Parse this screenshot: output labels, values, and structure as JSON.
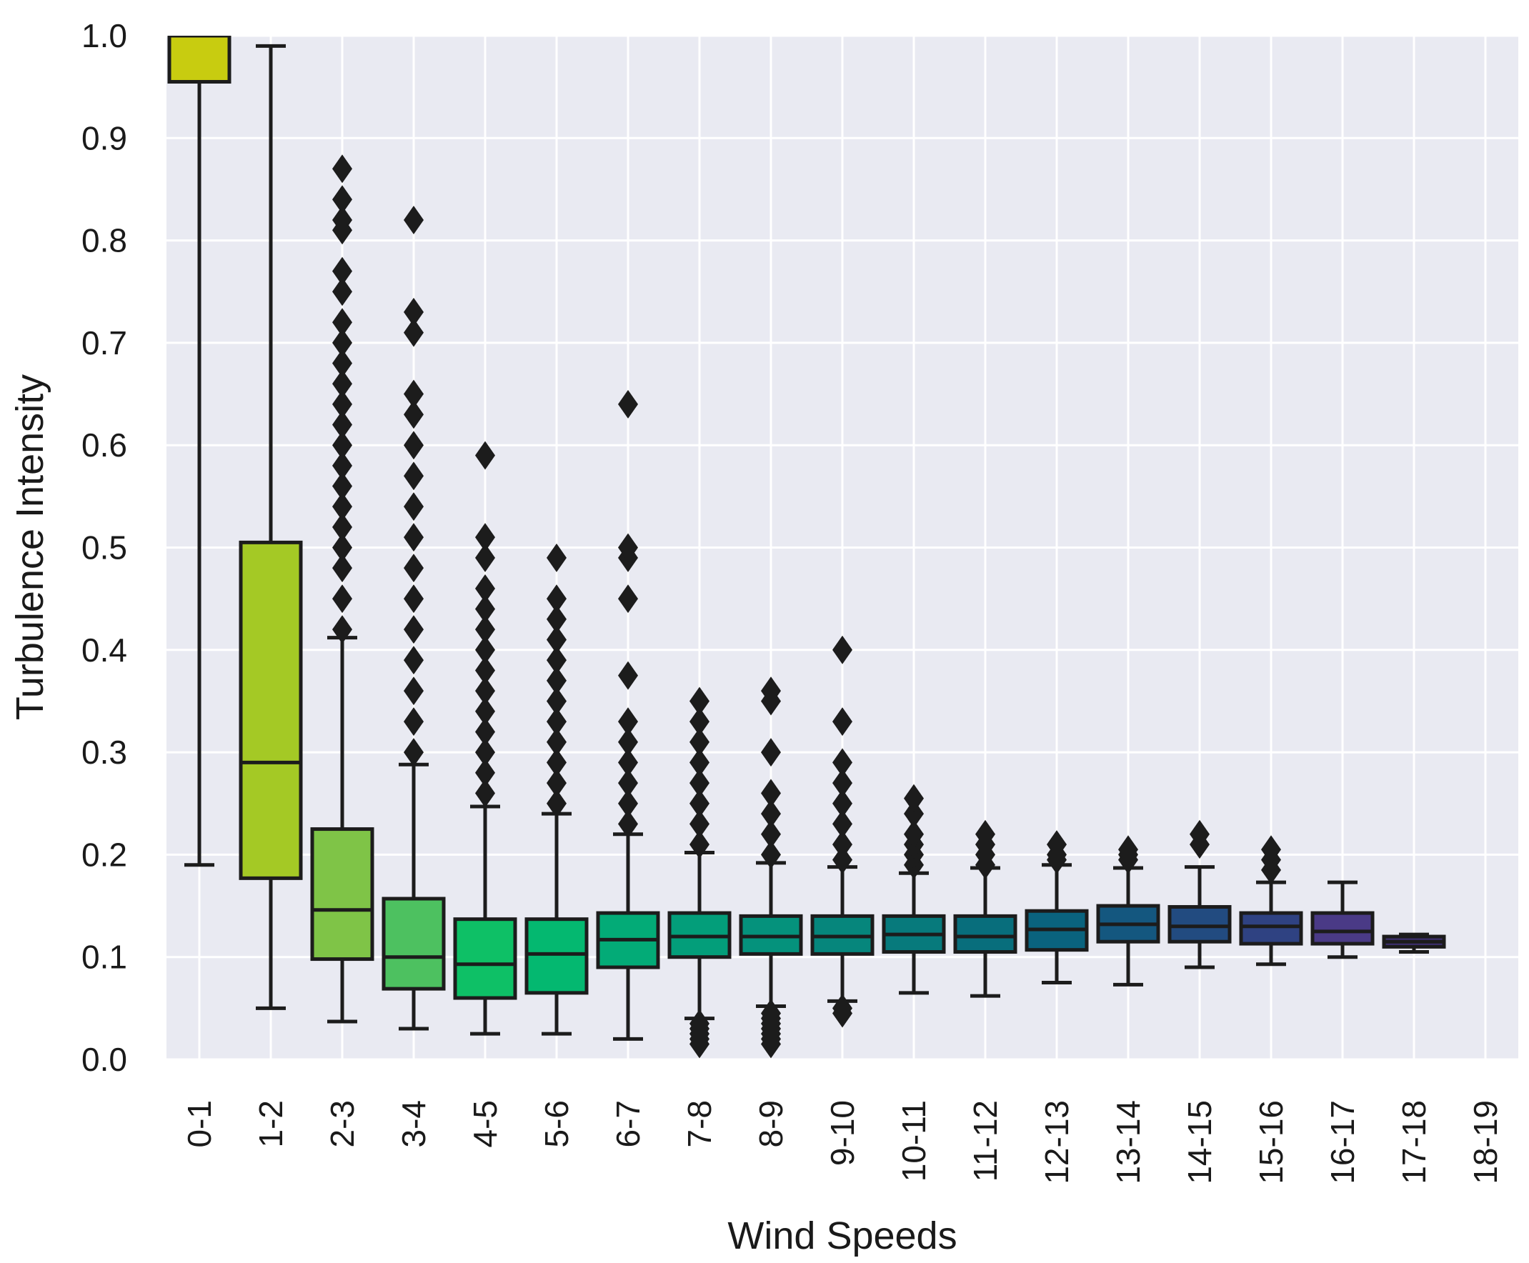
{
  "chart_data": {
    "type": "box",
    "title": "",
    "xlabel": "Wind Speeds",
    "ylabel": "Turbulence Intensity",
    "ylim": [
      0.0,
      1.0
    ],
    "yticks": [
      "0.0",
      "0.1",
      "0.2",
      "0.3",
      "0.4",
      "0.5",
      "0.6",
      "0.7",
      "0.8",
      "0.9",
      "1.0"
    ],
    "grid": true,
    "categories": [
      "0-1",
      "1-2",
      "2-3",
      "3-4",
      "4-5",
      "5-6",
      "6-7",
      "7-8",
      "8-9",
      "9-10",
      "10-11",
      "11-12",
      "12-13",
      "13-14",
      "14-15",
      "15-16",
      "16-17",
      "17-18",
      "18-19"
    ],
    "boxes": [
      {
        "category": "0-1",
        "whisker_low": 0.19,
        "q1": 0.955,
        "median": 1.0,
        "q3": 1.0,
        "whisker_high": 1.0,
        "color": "#c8cc10",
        "outliers": []
      },
      {
        "category": "1-2",
        "whisker_low": 0.05,
        "q1": 0.177,
        "median": 0.29,
        "q3": 0.505,
        "whisker_high": 0.99,
        "color": "#a4c925",
        "outliers": []
      },
      {
        "category": "2-3",
        "whisker_low": 0.037,
        "q1": 0.098,
        "median": 0.146,
        "q3": 0.225,
        "whisker_high": 0.412,
        "color": "#7fc447",
        "outliers": [
          0.42,
          0.45,
          0.48,
          0.5,
          0.52,
          0.54,
          0.56,
          0.58,
          0.6,
          0.62,
          0.64,
          0.66,
          0.68,
          0.7,
          0.72,
          0.75,
          0.77,
          0.81,
          0.82,
          0.84,
          0.87
        ]
      },
      {
        "category": "3-4",
        "whisker_low": 0.03,
        "q1": 0.069,
        "median": 0.1,
        "q3": 0.157,
        "whisker_high": 0.288,
        "color": "#4dc160",
        "outliers": [
          0.3,
          0.33,
          0.36,
          0.39,
          0.42,
          0.45,
          0.48,
          0.51,
          0.54,
          0.57,
          0.6,
          0.63,
          0.65,
          0.71,
          0.73,
          0.82
        ]
      },
      {
        "category": "4-5",
        "whisker_low": 0.025,
        "q1": 0.06,
        "median": 0.093,
        "q3": 0.137,
        "whisker_high": 0.247,
        "color": "#0ec066",
        "outliers": [
          0.26,
          0.28,
          0.3,
          0.32,
          0.34,
          0.36,
          0.38,
          0.4,
          0.42,
          0.44,
          0.46,
          0.49,
          0.51,
          0.59
        ]
      },
      {
        "category": "5-6",
        "whisker_low": 0.025,
        "q1": 0.065,
        "median": 0.103,
        "q3": 0.137,
        "whisker_high": 0.24,
        "color": "#04b870",
        "outliers": [
          0.25,
          0.27,
          0.29,
          0.31,
          0.33,
          0.35,
          0.37,
          0.39,
          0.41,
          0.43,
          0.45,
          0.49
        ]
      },
      {
        "category": "6-7",
        "whisker_low": 0.02,
        "q1": 0.09,
        "median": 0.117,
        "q3": 0.143,
        "whisker_high": 0.22,
        "color": "#03ab77",
        "outliers": [
          0.23,
          0.25,
          0.27,
          0.29,
          0.31,
          0.33,
          0.375,
          0.45,
          0.49,
          0.5,
          0.64
        ]
      },
      {
        "category": "7-8",
        "whisker_low": 0.04,
        "q1": 0.1,
        "median": 0.12,
        "q3": 0.143,
        "whisker_high": 0.202,
        "color": "#039e7a",
        "outliers": [
          0.015,
          0.02,
          0.025,
          0.03,
          0.035,
          0.21,
          0.23,
          0.25,
          0.27,
          0.29,
          0.31,
          0.33,
          0.35
        ]
      },
      {
        "category": "8-9",
        "whisker_low": 0.052,
        "q1": 0.103,
        "median": 0.12,
        "q3": 0.14,
        "whisker_high": 0.192,
        "color": "#05927c",
        "outliers": [
          0.015,
          0.02,
          0.025,
          0.03,
          0.035,
          0.04,
          0.045,
          0.2,
          0.22,
          0.24,
          0.26,
          0.3,
          0.35,
          0.36
        ]
      },
      {
        "category": "9-10",
        "whisker_low": 0.057,
        "q1": 0.103,
        "median": 0.12,
        "q3": 0.14,
        "whisker_high": 0.188,
        "color": "#06867c",
        "outliers": [
          0.045,
          0.05,
          0.195,
          0.21,
          0.23,
          0.25,
          0.27,
          0.29,
          0.33,
          0.4
        ]
      },
      {
        "category": "10-11",
        "whisker_low": 0.065,
        "q1": 0.105,
        "median": 0.122,
        "q3": 0.14,
        "whisker_high": 0.182,
        "color": "#077a7c",
        "outliers": [
          0.19,
          0.2,
          0.21,
          0.22,
          0.24,
          0.255
        ]
      },
      {
        "category": "11-12",
        "whisker_low": 0.062,
        "q1": 0.105,
        "median": 0.12,
        "q3": 0.14,
        "whisker_high": 0.187,
        "color": "#086e7c",
        "outliers": [
          0.19,
          0.2,
          0.21,
          0.22
        ]
      },
      {
        "category": "12-13",
        "whisker_low": 0.075,
        "q1": 0.107,
        "median": 0.127,
        "q3": 0.145,
        "whisker_high": 0.19,
        "color": "#0a637e",
        "outliers": [
          0.195,
          0.2,
          0.21
        ]
      },
      {
        "category": "13-14",
        "whisker_low": 0.073,
        "q1": 0.115,
        "median": 0.132,
        "q3": 0.15,
        "whisker_high": 0.187,
        "color": "#14577f",
        "outliers": [
          0.195,
          0.2,
          0.205
        ]
      },
      {
        "category": "14-15",
        "whisker_low": 0.09,
        "q1": 0.115,
        "median": 0.13,
        "q3": 0.149,
        "whisker_high": 0.188,
        "color": "#224b80",
        "outliers": [
          0.21,
          0.22
        ]
      },
      {
        "category": "15-16",
        "whisker_low": 0.093,
        "q1": 0.113,
        "median": 0.13,
        "q3": 0.143,
        "whisker_high": 0.173,
        "color": "#2f4282",
        "outliers": [
          0.185,
          0.195,
          0.205
        ]
      },
      {
        "category": "16-17",
        "whisker_low": 0.1,
        "q1": 0.113,
        "median": 0.125,
        "q3": 0.143,
        "whisker_high": 0.173,
        "color": "#4a3a86",
        "outliers": []
      },
      {
        "category": "17-18",
        "whisker_low": 0.105,
        "q1": 0.11,
        "median": 0.115,
        "q3": 0.12,
        "whisker_high": 0.122,
        "color": "#3d2f6e",
        "outliers": []
      },
      {
        "category": "18-19",
        "empty": true
      }
    ]
  }
}
